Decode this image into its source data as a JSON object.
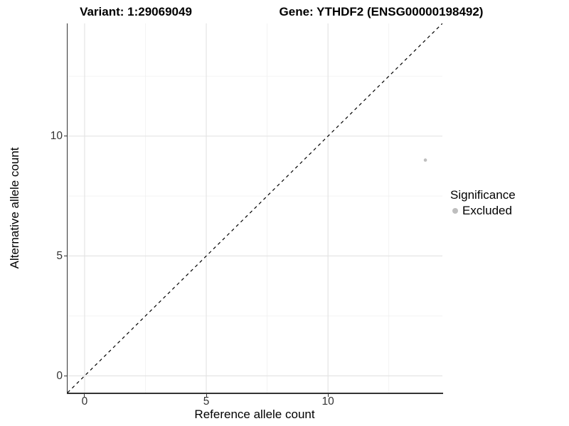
{
  "chart_data": {
    "type": "scatter",
    "titles": {
      "left": "Variant: 1:29069049",
      "right": "Gene: YTHDF2 (ENSG00000198492)"
    },
    "xlabel": "Reference allele count",
    "ylabel": "Alternative allele count",
    "xlim": [
      -0.7,
      14.7
    ],
    "ylim": [
      -0.7,
      14.7
    ],
    "x_ticks": [
      0,
      5,
      10
    ],
    "y_ticks": [
      0,
      5,
      10
    ],
    "x_minor_ticks": [
      2.5,
      7.5,
      12.5
    ],
    "y_minor_ticks": [
      2.5,
      7.5,
      12.5
    ],
    "grid": true,
    "legend_position": "right",
    "series": [
      {
        "name": "Excluded",
        "color": "#bebebe",
        "points": [
          {
            "x": 14,
            "y": 9
          }
        ]
      }
    ],
    "reference_line": {
      "intercept": 0,
      "slope": 1,
      "style": "dashed",
      "color": "#000000"
    }
  },
  "legend": {
    "title": "Significance",
    "items": [
      {
        "label": "Excluded",
        "color": "#bebebe",
        "marker": "circle"
      }
    ]
  },
  "colors": {
    "grid_major": "#e4e4e4",
    "grid_minor": "#f0f0f0",
    "axis_line": "#333333",
    "tick_text": "#333333",
    "title_text": "#000000"
  }
}
